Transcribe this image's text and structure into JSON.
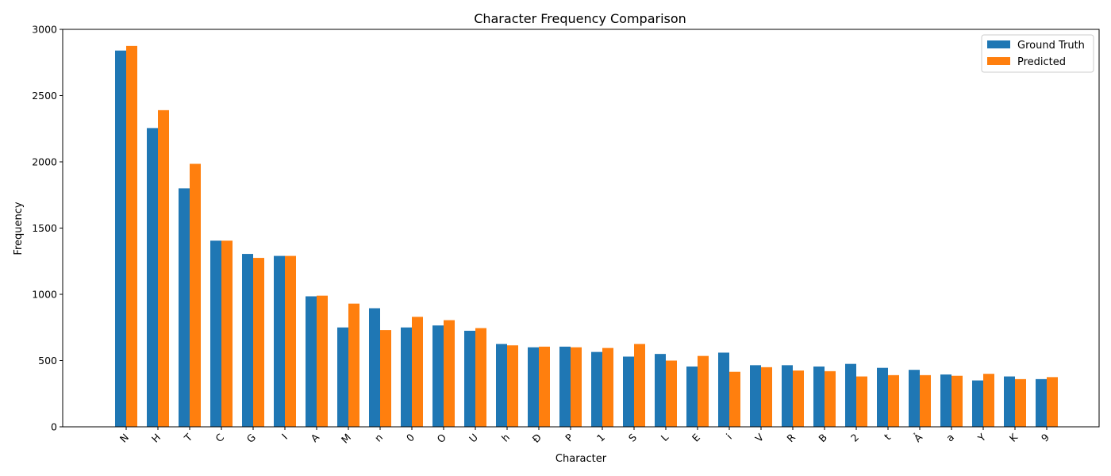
{
  "chart_data": {
    "type": "bar",
    "title": "Character Frequency Comparison",
    "xlabel": "Character",
    "ylabel": "Frequency",
    "ylim": [
      0,
      3000
    ],
    "yticks": [
      0,
      500,
      1000,
      1500,
      2000,
      2500,
      3000
    ],
    "grid": false,
    "legend_position": "top-right",
    "categories": [
      "N",
      "H",
      "T",
      "C",
      "G",
      "I",
      "A",
      "M",
      "n",
      "0",
      "O",
      "U",
      "h",
      "Đ",
      "P",
      "1",
      "S",
      "L",
      "E",
      "i",
      "V",
      "R",
      "B",
      "2",
      "t",
      "Ả",
      "a",
      "Y",
      "K",
      "9"
    ],
    "series": [
      {
        "name": "Ground Truth",
        "color": "#1f77b4",
        "values": [
          2840,
          2255,
          1800,
          1405,
          1305,
          1290,
          985,
          750,
          895,
          750,
          765,
          725,
          625,
          600,
          605,
          565,
          530,
          550,
          455,
          560,
          465,
          465,
          455,
          475,
          445,
          430,
          395,
          350,
          380,
          360
        ]
      },
      {
        "name": "Predicted",
        "color": "#ff7f0e",
        "values": [
          2875,
          2390,
          1985,
          1405,
          1275,
          1290,
          990,
          930,
          730,
          830,
          805,
          745,
          615,
          605,
          600,
          595,
          625,
          500,
          535,
          415,
          450,
          425,
          420,
          380,
          390,
          390,
          385,
          400,
          360,
          375
        ]
      }
    ]
  }
}
